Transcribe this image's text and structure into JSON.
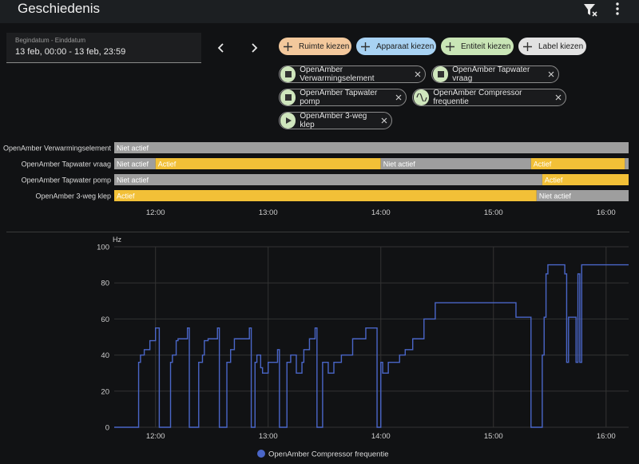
{
  "header": {
    "title": "Geschiedenis"
  },
  "date_picker": {
    "label": "Begindatum - Einddatum",
    "value": "13 feb, 00:00 - 13 feb, 23:59"
  },
  "target_buttons": [
    "Ruimte kiezen",
    "Apparaat kiezen",
    "Entiteit kiezen",
    "Label kiezen"
  ],
  "chips": [
    "OpenAmber Verwarmingselement",
    "OpenAmber Tapwater vraag",
    "OpenAmber Tapwater pomp",
    "OpenAmber Compressor frequentie",
    "OpenAmber 3-weg klep"
  ],
  "chart_data": [
    {
      "type": "timeline",
      "xlim": [
        "11:38",
        "16:12"
      ],
      "xticks": [
        "12:00",
        "13:00",
        "14:00",
        "15:00",
        "16:00"
      ],
      "rows": [
        {
          "name": "OpenAmber Verwarmingselement",
          "segments": [
            {
              "state": "Niet actief",
              "start": "11:38",
              "end": "16:12",
              "color": "#9e9e9e"
            }
          ]
        },
        {
          "name": "OpenAmber Tapwater vraag",
          "segments": [
            {
              "state": "Niet actief",
              "start": "11:38",
              "end": "12:00",
              "color": "#9e9e9e"
            },
            {
              "state": "Actief",
              "start": "12:00",
              "end": "14:00",
              "color": "#f2c037"
            },
            {
              "state": "Niet actief",
              "start": "14:00",
              "end": "15:20",
              "color": "#9e9e9e"
            },
            {
              "state": "Actief",
              "start": "15:20",
              "end": "16:10",
              "color": "#f2c037"
            },
            {
              "state": null,
              "start": "16:10",
              "end": "16:12",
              "color": "#9e9e9e"
            }
          ]
        },
        {
          "name": "OpenAmber Tapwater pomp",
          "segments": [
            {
              "state": "Niet actief",
              "start": "11:38",
              "end": "15:26",
              "color": "#9e9e9e"
            },
            {
              "state": "Actief",
              "start": "15:26",
              "end": "16:12",
              "color": "#f2c037"
            }
          ]
        },
        {
          "name": "OpenAmber 3-weg klep",
          "segments": [
            {
              "state": "Actief",
              "start": "11:38",
              "end": "15:23",
              "color": "#f2c037"
            },
            {
              "state": "Niet actief",
              "start": "15:23",
              "end": "16:12",
              "color": "#9e9e9e"
            }
          ]
        }
      ]
    },
    {
      "type": "line",
      "y_label": "Hz",
      "step": "post",
      "grid": true,
      "xlim": [
        "11:38",
        "16:12"
      ],
      "xticks": [
        "12:00",
        "13:00",
        "14:00",
        "15:00",
        "16:00"
      ],
      "ylim": [
        0,
        100
      ],
      "yticks": [
        0,
        20,
        40,
        60,
        80,
        100
      ],
      "x": [
        "11:38",
        "11:51",
        "11:52",
        "11:54",
        "11:57",
        "12:00",
        "12:02",
        "12:08",
        "12:09",
        "12:11",
        "12:12",
        "12:17",
        "12:18",
        "12:23",
        "12:25",
        "12:26",
        "12:28",
        "12:33",
        "12:34",
        "12:38",
        "12:40",
        "12:42",
        "12:50",
        "12:51",
        "12:53",
        "12:54",
        "12:56",
        "12:57",
        "13:00",
        "13:05",
        "13:06",
        "13:10",
        "13:12",
        "13:15",
        "13:18",
        "13:19",
        "13:22",
        "13:25",
        "13:26",
        "13:29",
        "13:32",
        "13:35",
        "13:39",
        "13:45",
        "13:52",
        "13:58",
        "14:00",
        "14:01",
        "14:04",
        "14:10",
        "14:13",
        "14:17",
        "14:23",
        "14:29",
        "15:12",
        "15:20",
        "15:26",
        "15:27",
        "15:28",
        "15:29",
        "15:38",
        "15:39",
        "15:40",
        "15:44",
        "15:45",
        "15:46",
        "15:47",
        "16:12"
      ],
      "series": [
        {
          "name": "OpenAmber Compressor frequentie",
          "color": "#4a66c8",
          "values": [
            0,
            36,
            40,
            43,
            48,
            55,
            0,
            36,
            40,
            48,
            49,
            55,
            0,
            36,
            40,
            48,
            49,
            55,
            0,
            36,
            43,
            49,
            55,
            0,
            36,
            40,
            33,
            30,
            36,
            43,
            0,
            36,
            40,
            30,
            36,
            43,
            49,
            55,
            0,
            36,
            30,
            36,
            40,
            49,
            55,
            0,
            36,
            30,
            36,
            40,
            43,
            49,
            60,
            69,
            61,
            0,
            40,
            61,
            85,
            90,
            85,
            36,
            61,
            36,
            85,
            36,
            90,
            90
          ]
        }
      ]
    }
  ]
}
